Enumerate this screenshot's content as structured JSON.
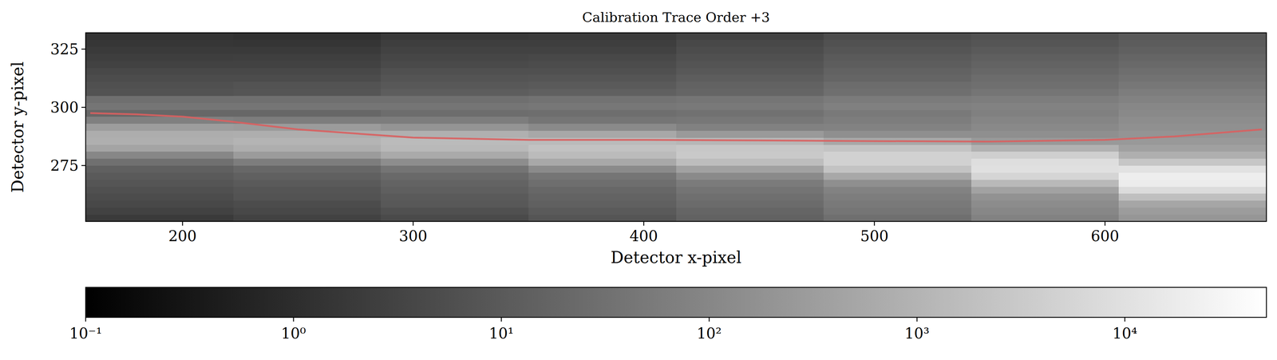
{
  "chart_data": {
    "type": "heatmap_trace",
    "title": "Calibration Trace Order +3",
    "x_label": "Detector x-pixel",
    "y_label": "Detector y-pixel",
    "xlim": [
      158,
      670
    ],
    "ylim": [
      251,
      332
    ],
    "xticks": [
      200,
      300,
      400,
      500,
      600
    ],
    "yticks": [
      275,
      300,
      325
    ],
    "x": [
      160,
      180,
      200,
      220,
      250,
      300,
      350,
      400,
      450,
      500,
      550,
      600,
      630,
      668
    ],
    "values": [
      297.5,
      297,
      296,
      294,
      290.5,
      287,
      286,
      286,
      285.8,
      285.5,
      285.3,
      286,
      287.5,
      290.5
    ],
    "color": "#d95f5f",
    "heatmap": {
      "x_edges": [
        158,
        222,
        286,
        350,
        414,
        478,
        542,
        606,
        670
      ],
      "y_edges": [
        251,
        254,
        257,
        260,
        263,
        266,
        269,
        272,
        275,
        278,
        281,
        284,
        287,
        290,
        293,
        296,
        299,
        302,
        305,
        308,
        311,
        314,
        317,
        320,
        323,
        326,
        329,
        332
      ],
      "columns": [
        [
          2,
          3,
          4,
          5,
          6,
          8,
          10,
          14,
          32,
          100,
          440,
          800,
          720,
          320,
          72,
          20,
          40,
          30,
          7,
          6,
          5,
          4,
          3,
          2.4,
          2,
          1.6,
          1.4
        ],
        [
          3,
          4,
          5,
          7,
          8,
          10,
          14,
          20,
          60,
          280,
          750,
          1050,
          750,
          280,
          60,
          20,
          40,
          30,
          8,
          7,
          5,
          4,
          3,
          2.5,
          2,
          1.5,
          1.2
        ],
        [
          4.5,
          6,
          9,
          10,
          13,
          16,
          22,
          38,
          135,
          600,
          1350,
          1500,
          820,
          195,
          60,
          27,
          40,
          30,
          12,
          9,
          7.5,
          6,
          4.5,
          3.7,
          3,
          2.4,
          1.8
        ],
        [
          8,
          10,
          14,
          16,
          20,
          28,
          40,
          120,
          560,
          1500,
          2100,
          1500,
          560,
          120,
          40,
          28,
          45,
          35,
          14,
          10,
          8,
          6,
          5,
          4,
          3,
          2.4,
          2
        ],
        [
          15,
          18,
          24,
          30,
          39,
          54,
          120,
          390,
          1650,
          3000,
          2700,
          1200,
          270,
          75,
          45,
          33,
          50,
          40,
          18,
          15,
          12,
          9,
          7.5,
          6,
          5,
          4,
          3
        ],
        [
          30,
          40,
          50,
          60,
          80,
          150,
          550,
          2250,
          4500,
          4500,
          2250,
          550,
          150,
          80,
          60,
          50,
          70,
          55,
          30,
          25,
          18,
          15,
          12,
          10,
          8,
          6.5,
          5
        ],
        [
          80,
          100,
          130,
          180,
          400,
          1300,
          5500,
          10000,
          9000,
          4000,
          900,
          250,
          150,
          110,
          90,
          70,
          80,
          60,
          40,
          30,
          25,
          20,
          16,
          13,
          10,
          8,
          6
        ],
        [
          220,
          300,
          500,
          1800,
          8000,
          18000,
          20000,
          11000,
          2600,
          800,
          360,
          260,
          200,
          160,
          140,
          110,
          100,
          80,
          60,
          45,
          35,
          28,
          22,
          18,
          14,
          11,
          9
        ]
      ]
    },
    "colorbar": {
      "range": [
        0.1,
        48000
      ],
      "log": true,
      "ticks": [
        {
          "value": 0.1,
          "label": "10⁻¹"
        },
        {
          "value": 1,
          "label": "10⁰"
        },
        {
          "value": 10,
          "label": "10¹"
        },
        {
          "value": 100,
          "label": "10²"
        },
        {
          "value": 1000,
          "label": "10³"
        },
        {
          "value": 10000,
          "label": "10⁴"
        }
      ]
    }
  }
}
